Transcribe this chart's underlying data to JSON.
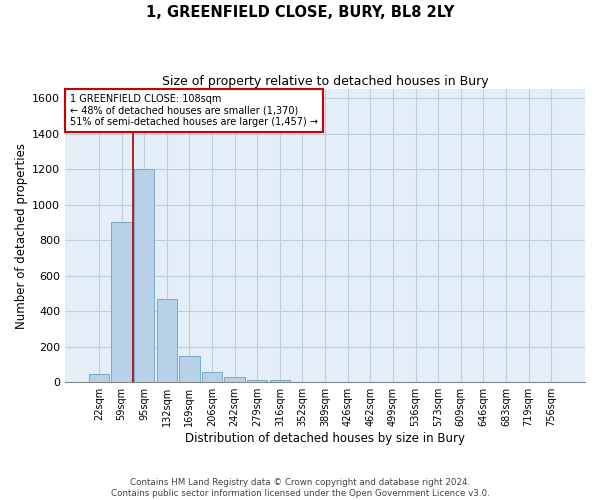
{
  "title": "1, GREENFIELD CLOSE, BURY, BL8 2LY",
  "subtitle": "Size of property relative to detached houses in Bury",
  "xlabel": "Distribution of detached houses by size in Bury",
  "ylabel": "Number of detached properties",
  "footer": "Contains HM Land Registry data © Crown copyright and database right 2024.\nContains public sector information licensed under the Open Government Licence v3.0.",
  "bar_color": "#b8d0e8",
  "bar_edge_color": "#7aaac8",
  "grid_color": "#c0cedc",
  "background_color": "#e4eef8",
  "annotation_box_color": "#cc0000",
  "vline_color": "#aa0000",
  "categories": [
    "22sqm",
    "59sqm",
    "95sqm",
    "132sqm",
    "169sqm",
    "206sqm",
    "242sqm",
    "279sqm",
    "316sqm",
    "352sqm",
    "389sqm",
    "426sqm",
    "462sqm",
    "499sqm",
    "536sqm",
    "573sqm",
    "609sqm",
    "646sqm",
    "683sqm",
    "719sqm",
    "756sqm"
  ],
  "values": [
    45,
    900,
    1200,
    470,
    150,
    60,
    30,
    15,
    10,
    0,
    0,
    0,
    0,
    0,
    0,
    0,
    0,
    0,
    0,
    0,
    0
  ],
  "ylim": [
    0,
    1650
  ],
  "yticks": [
    0,
    200,
    400,
    600,
    800,
    1000,
    1200,
    1400,
    1600
  ],
  "property_label": "1 GREENFIELD CLOSE: 108sqm",
  "annotation_line1": "← 48% of detached houses are smaller (1,370)",
  "annotation_line2": "51% of semi-detached houses are larger (1,457) →",
  "vline_x_index": 1.5
}
